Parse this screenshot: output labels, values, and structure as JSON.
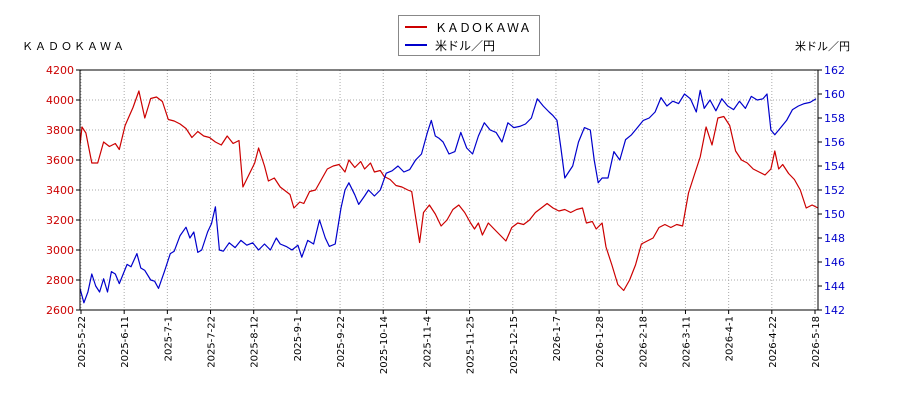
{
  "left_title": "ＫＡＤＯＫＡＷＡ",
  "right_title": "米ドル／円",
  "legend": [
    {
      "label": "ＫＡＤＯＫＡＷＡ",
      "color": "#cc0000"
    },
    {
      "label": "米ドル／円",
      "color": "#0000cc"
    }
  ],
  "chart_data": {
    "type": "line",
    "x_tick_labels": [
      "2025-5-22",
      "2025-6-11",
      "2025-7-1",
      "2025-7-22",
      "2025-8-12",
      "2025-9-1",
      "2025-9-22",
      "2025-10-14",
      "2025-11-4",
      "2025-11-25",
      "2025-12-15",
      "2026-1-7",
      "2026-1-28",
      "2026-2-18",
      "2026-3-11",
      "2026-4-1",
      "2026-4-22",
      "2026-5-18"
    ],
    "y_left": {
      "min": 2600,
      "max": 4200,
      "ticks": [
        2600,
        2800,
        3000,
        3200,
        3400,
        3600,
        3800,
        4000,
        4200
      ],
      "color": "#cc0000"
    },
    "y_right": {
      "min": 142,
      "max": 162,
      "ticks": [
        142,
        144,
        146,
        148,
        150,
        152,
        154,
        156,
        158,
        160,
        162
      ],
      "color": "#0000cc"
    },
    "grid": true,
    "legend_position": "top-center",
    "series": [
      {
        "name": "ＫＡＤＯＫＡＷＡ",
        "axis": "left",
        "color": "#cc0000",
        "points": [
          [
            0,
            3700
          ],
          [
            1,
            3820
          ],
          [
            3,
            3780
          ],
          [
            6,
            3580
          ],
          [
            9,
            3580
          ],
          [
            12,
            3720
          ],
          [
            15,
            3690
          ],
          [
            18,
            3710
          ],
          [
            20,
            3670
          ],
          [
            23,
            3830
          ],
          [
            27,
            3950
          ],
          [
            30,
            4060
          ],
          [
            33,
            3880
          ],
          [
            36,
            4010
          ],
          [
            39,
            4020
          ],
          [
            42,
            3990
          ],
          [
            45,
            3870
          ],
          [
            48,
            3860
          ],
          [
            51,
            3840
          ],
          [
            54,
            3810
          ],
          [
            57,
            3750
          ],
          [
            60,
            3790
          ],
          [
            63,
            3760
          ],
          [
            66,
            3750
          ],
          [
            69,
            3720
          ],
          [
            72,
            3700
          ],
          [
            75,
            3760
          ],
          [
            78,
            3710
          ],
          [
            81,
            3730
          ],
          [
            83,
            3420
          ],
          [
            86,
            3500
          ],
          [
            89,
            3580
          ],
          [
            91,
            3680
          ],
          [
            94,
            3560
          ],
          [
            96,
            3460
          ],
          [
            99,
            3480
          ],
          [
            102,
            3420
          ],
          [
            105,
            3390
          ],
          [
            107,
            3370
          ],
          [
            109,
            3280
          ],
          [
            112,
            3320
          ],
          [
            114,
            3310
          ],
          [
            117,
            3390
          ],
          [
            120,
            3400
          ],
          [
            123,
            3470
          ],
          [
            126,
            3540
          ],
          [
            129,
            3560
          ],
          [
            132,
            3570
          ],
          [
            135,
            3520
          ],
          [
            137,
            3600
          ],
          [
            140,
            3550
          ],
          [
            143,
            3590
          ],
          [
            145,
            3540
          ],
          [
            148,
            3580
          ],
          [
            150,
            3520
          ],
          [
            153,
            3530
          ],
          [
            155,
            3490
          ],
          [
            158,
            3470
          ],
          [
            161,
            3430
          ],
          [
            164,
            3420
          ],
          [
            167,
            3400
          ],
          [
            169,
            3390
          ],
          [
            171,
            3220
          ],
          [
            173,
            3050
          ],
          [
            175,
            3250
          ],
          [
            178,
            3300
          ],
          [
            181,
            3240
          ],
          [
            184,
            3160
          ],
          [
            187,
            3200
          ],
          [
            190,
            3270
          ],
          [
            193,
            3300
          ],
          [
            196,
            3250
          ],
          [
            199,
            3180
          ],
          [
            201,
            3140
          ],
          [
            203,
            3180
          ],
          [
            205,
            3100
          ],
          [
            208,
            3180
          ],
          [
            211,
            3140
          ],
          [
            214,
            3100
          ],
          [
            217,
            3060
          ],
          [
            220,
            3150
          ],
          [
            223,
            3180
          ],
          [
            226,
            3170
          ],
          [
            229,
            3200
          ],
          [
            232,
            3250
          ],
          [
            235,
            3280
          ],
          [
            238,
            3310
          ],
          [
            241,
            3280
          ],
          [
            244,
            3260
          ],
          [
            247,
            3270
          ],
          [
            250,
            3250
          ],
          [
            253,
            3270
          ],
          [
            256,
            3280
          ],
          [
            258,
            3180
          ],
          [
            261,
            3190
          ],
          [
            263,
            3140
          ],
          [
            266,
            3180
          ],
          [
            268,
            3020
          ],
          [
            271,
            2900
          ],
          [
            274,
            2770
          ],
          [
            277,
            2730
          ],
          [
            280,
            2800
          ],
          [
            283,
            2900
          ],
          [
            286,
            3040
          ],
          [
            289,
            3060
          ],
          [
            292,
            3080
          ],
          [
            295,
            3150
          ],
          [
            298,
            3170
          ],
          [
            301,
            3150
          ],
          [
            304,
            3170
          ],
          [
            307,
            3160
          ],
          [
            310,
            3380
          ],
          [
            313,
            3500
          ],
          [
            316,
            3620
          ],
          [
            319,
            3820
          ],
          [
            322,
            3700
          ],
          [
            325,
            3880
          ],
          [
            328,
            3890
          ],
          [
            331,
            3830
          ],
          [
            334,
            3660
          ],
          [
            337,
            3600
          ],
          [
            340,
            3580
          ],
          [
            343,
            3540
          ],
          [
            346,
            3520
          ],
          [
            349,
            3500
          ],
          [
            352,
            3540
          ],
          [
            354,
            3660
          ],
          [
            356,
            3540
          ],
          [
            358,
            3570
          ],
          [
            361,
            3510
          ],
          [
            364,
            3470
          ],
          [
            367,
            3400
          ],
          [
            370,
            3280
          ],
          [
            373,
            3300
          ],
          [
            376,
            3280
          ]
        ]
      },
      {
        "name": "米ドル／円",
        "axis": "right",
        "color": "#0000cc",
        "points": [
          [
            0,
            143.8
          ],
          [
            2,
            142.6
          ],
          [
            4,
            143.5
          ],
          [
            6,
            145.0
          ],
          [
            8,
            144.0
          ],
          [
            10,
            143.5
          ],
          [
            12,
            144.6
          ],
          [
            14,
            143.5
          ],
          [
            16,
            145.2
          ],
          [
            18,
            145.0
          ],
          [
            20,
            144.2
          ],
          [
            22,
            145.0
          ],
          [
            24,
            145.8
          ],
          [
            26,
            145.6
          ],
          [
            29,
            146.7
          ],
          [
            31,
            145.5
          ],
          [
            33,
            145.3
          ],
          [
            36,
            144.5
          ],
          [
            38,
            144.4
          ],
          [
            40,
            143.8
          ],
          [
            43,
            145.2
          ],
          [
            46,
            146.7
          ],
          [
            48,
            146.9
          ],
          [
            51,
            148.2
          ],
          [
            54,
            148.9
          ],
          [
            56,
            148.0
          ],
          [
            58,
            148.5
          ],
          [
            60,
            146.8
          ],
          [
            62,
            147.0
          ],
          [
            65,
            148.5
          ],
          [
            67,
            149.2
          ],
          [
            69,
            150.6
          ],
          [
            71,
            147.0
          ],
          [
            73,
            146.9
          ],
          [
            76,
            147.6
          ],
          [
            79,
            147.2
          ],
          [
            82,
            147.8
          ],
          [
            85,
            147.4
          ],
          [
            88,
            147.6
          ],
          [
            91,
            147.0
          ],
          [
            94,
            147.5
          ],
          [
            97,
            147.0
          ],
          [
            100,
            148.0
          ],
          [
            102,
            147.5
          ],
          [
            105,
            147.3
          ],
          [
            108,
            147.0
          ],
          [
            111,
            147.4
          ],
          [
            113,
            146.4
          ],
          [
            116,
            147.8
          ],
          [
            119,
            147.5
          ],
          [
            122,
            149.5
          ],
          [
            125,
            148.0
          ],
          [
            127,
            147.3
          ],
          [
            130,
            147.5
          ],
          [
            133,
            150.5
          ],
          [
            135,
            152.0
          ],
          [
            137,
            152.6
          ],
          [
            140,
            151.6
          ],
          [
            142,
            150.8
          ],
          [
            145,
            151.5
          ],
          [
            147,
            152.0
          ],
          [
            150,
            151.5
          ],
          [
            153,
            152.0
          ],
          [
            156,
            153.4
          ],
          [
            159,
            153.6
          ],
          [
            162,
            154.0
          ],
          [
            165,
            153.5
          ],
          [
            168,
            153.7
          ],
          [
            171,
            154.5
          ],
          [
            174,
            155.0
          ],
          [
            177,
            156.8
          ],
          [
            179,
            157.8
          ],
          [
            181,
            156.5
          ],
          [
            183,
            156.3
          ],
          [
            185,
            156.0
          ],
          [
            188,
            155.0
          ],
          [
            191,
            155.2
          ],
          [
            194,
            156.8
          ],
          [
            197,
            155.5
          ],
          [
            200,
            155.0
          ],
          [
            203,
            156.5
          ],
          [
            206,
            157.6
          ],
          [
            209,
            157.0
          ],
          [
            212,
            156.8
          ],
          [
            215,
            156.0
          ],
          [
            218,
            157.6
          ],
          [
            221,
            157.2
          ],
          [
            224,
            157.3
          ],
          [
            227,
            157.5
          ],
          [
            230,
            158.0
          ],
          [
            233,
            159.6
          ],
          [
            236,
            159.0
          ],
          [
            239,
            158.5
          ],
          [
            241,
            158.2
          ],
          [
            243,
            157.8
          ],
          [
            245,
            155.5
          ],
          [
            247,
            153.0
          ],
          [
            249,
            153.5
          ],
          [
            251,
            154.0
          ],
          [
            254,
            156.0
          ],
          [
            257,
            157.2
          ],
          [
            260,
            157.0
          ],
          [
            262,
            154.5
          ],
          [
            264,
            152.6
          ],
          [
            266,
            153.0
          ],
          [
            269,
            153.0
          ],
          [
            272,
            155.2
          ],
          [
            275,
            154.5
          ],
          [
            278,
            156.2
          ],
          [
            281,
            156.6
          ],
          [
            284,
            157.2
          ],
          [
            287,
            157.8
          ],
          [
            290,
            158.0
          ],
          [
            293,
            158.5
          ],
          [
            296,
            159.7
          ],
          [
            299,
            159.0
          ],
          [
            302,
            159.4
          ],
          [
            305,
            159.2
          ],
          [
            308,
            160.0
          ],
          [
            311,
            159.6
          ],
          [
            314,
            158.5
          ],
          [
            316,
            160.3
          ],
          [
            318,
            158.8
          ],
          [
            321,
            159.5
          ],
          [
            324,
            158.6
          ],
          [
            327,
            159.6
          ],
          [
            330,
            159.0
          ],
          [
            333,
            158.7
          ],
          [
            336,
            159.4
          ],
          [
            339,
            158.8
          ],
          [
            342,
            159.8
          ],
          [
            345,
            159.5
          ],
          [
            348,
            159.6
          ],
          [
            350,
            160.0
          ],
          [
            352,
            157.0
          ],
          [
            354,
            156.6
          ],
          [
            357,
            157.2
          ],
          [
            360,
            157.8
          ],
          [
            363,
            158.7
          ],
          [
            366,
            159.0
          ],
          [
            369,
            159.2
          ],
          [
            372,
            159.3
          ],
          [
            375,
            159.6
          ]
        ]
      }
    ]
  }
}
